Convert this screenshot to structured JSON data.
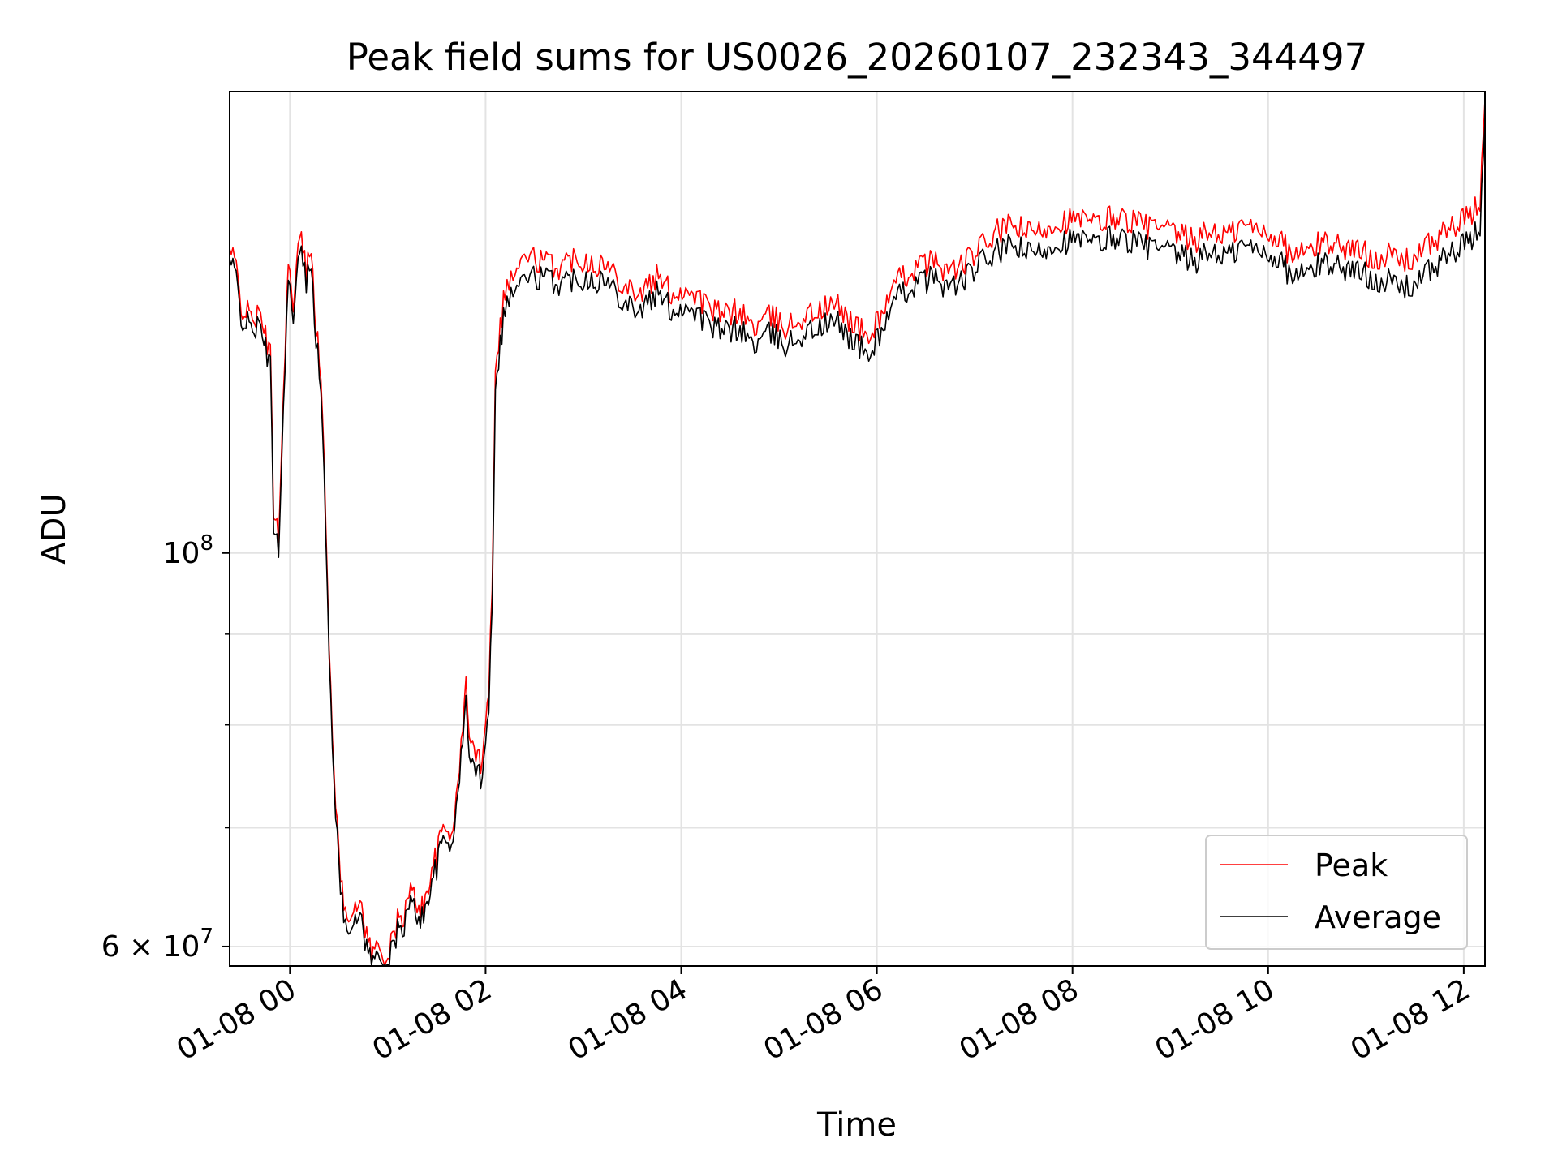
{
  "chart_data": {
    "type": "line",
    "title": "Peak field sums for US0026_20260107_232343_344497",
    "xlabel": "Time",
    "ylabel": "ADU",
    "y_scale": "log",
    "grid": true,
    "legend_position": "lower-right",
    "x_tick_labels": [
      "01-08 00",
      "01-08 02",
      "01-08 04",
      "01-08 06",
      "01-08 08",
      "01-08 10",
      "01-08 12"
    ],
    "y_tick_labels": [
      {
        "value": 100000000,
        "mantissa": "",
        "base": "10",
        "exp": "8"
      },
      {
        "value": 60000000,
        "mantissa": "6",
        "base": "10",
        "exp": "7"
      }
    ],
    "xlim": [
      "01-07 23:23",
      "01-08 12:13"
    ],
    "ylim": [
      58500000,
      182000000
    ],
    "series": [
      {
        "name": "Peak",
        "color": "#ff0000",
        "points": [
          [
            "01-07 23:23",
            148000000
          ],
          [
            "01-07 23:27",
            145000000
          ],
          [
            "01-07 23:30",
            138000000
          ],
          [
            "01-07 23:35",
            136000000
          ],
          [
            "01-07 23:40",
            136000000
          ],
          [
            "01-07 23:44",
            134000000
          ],
          [
            "01-07 23:48",
            129000000
          ],
          [
            "01-07 23:50",
            106000000
          ],
          [
            "01-07 23:53",
            103000000
          ],
          [
            "01-07 23:56",
            122000000
          ],
          [
            "01-07 23:59",
            148000000
          ],
          [
            "01-08 00:02",
            136000000
          ],
          [
            "01-08 00:06",
            152000000
          ],
          [
            "01-08 00:10",
            144000000
          ],
          [
            "01-08 00:13",
            150000000
          ],
          [
            "01-08 00:16",
            134000000
          ],
          [
            "01-08 00:19",
            126000000
          ],
          [
            "01-08 00:21",
            112000000
          ],
          [
            "01-08 00:24",
            88000000
          ],
          [
            "01-08 00:27",
            76000000
          ],
          [
            "01-08 00:30",
            67000000
          ],
          [
            "01-08 00:33",
            63500000
          ],
          [
            "01-08 00:36",
            63000000
          ],
          [
            "01-08 00:40",
            62500000
          ],
          [
            "01-08 00:43",
            64000000
          ],
          [
            "01-08 00:47",
            61000000
          ],
          [
            "01-08 00:50",
            59500000
          ],
          [
            "01-08 00:54",
            60000000
          ],
          [
            "01-08 00:57",
            59500000
          ],
          [
            "01-08 01:00",
            59000000
          ],
          [
            "01-08 01:03",
            60500000
          ],
          [
            "01-08 01:06",
            62000000
          ],
          [
            "01-08 01:10",
            62500000
          ],
          [
            "01-08 01:14",
            64500000
          ],
          [
            "01-08 01:18",
            63500000
          ],
          [
            "01-08 01:22",
            63000000
          ],
          [
            "01-08 01:26",
            66000000
          ],
          [
            "01-08 01:30",
            67500000
          ],
          [
            "01-08 01:34",
            70000000
          ],
          [
            "01-08 01:38",
            69500000
          ],
          [
            "01-08 01:42",
            72000000
          ],
          [
            "01-08 01:45",
            78000000
          ],
          [
            "01-08 01:48",
            84000000
          ],
          [
            "01-08 01:51",
            78000000
          ],
          [
            "01-08 01:54",
            77000000
          ],
          [
            "01-08 01:57",
            76000000
          ],
          [
            "01-08 02:00",
            81000000
          ],
          [
            "01-08 02:02",
            84000000
          ],
          [
            "01-08 02:04",
            96000000
          ],
          [
            "01-08 02:06",
            128000000
          ],
          [
            "01-08 02:08",
            132000000
          ],
          [
            "01-08 02:12",
            141000000
          ],
          [
            "01-08 02:18",
            144000000
          ],
          [
            "01-08 02:25",
            147000000
          ],
          [
            "01-08 02:35",
            146000000
          ],
          [
            "01-08 02:45",
            145000000
          ],
          [
            "01-08 02:55",
            147000000
          ],
          [
            "01-08 03:05",
            146000000
          ],
          [
            "01-08 03:15",
            145000000
          ],
          [
            "01-08 03:25",
            142000000
          ],
          [
            "01-08 03:35",
            140000000
          ],
          [
            "01-08 03:45",
            143000000
          ],
          [
            "01-08 03:55",
            140000000
          ],
          [
            "01-08 04:05",
            141000000
          ],
          [
            "01-08 04:15",
            138000000
          ],
          [
            "01-08 04:25",
            136000000
          ],
          [
            "01-08 04:35",
            137000000
          ],
          [
            "01-08 04:45",
            134000000
          ],
          [
            "01-08 04:55",
            136000000
          ],
          [
            "01-08 05:05",
            134000000
          ],
          [
            "01-08 05:15",
            136000000
          ],
          [
            "01-08 05:25",
            137000000
          ],
          [
            "01-08 05:35",
            138000000
          ],
          [
            "01-08 05:45",
            135000000
          ],
          [
            "01-08 05:55",
            132000000
          ],
          [
            "01-08 06:05",
            138000000
          ],
          [
            "01-08 06:15",
            143000000
          ],
          [
            "01-08 06:25",
            145000000
          ],
          [
            "01-08 06:35",
            146000000
          ],
          [
            "01-08 06:45",
            144000000
          ],
          [
            "01-08 06:55",
            146000000
          ],
          [
            "01-08 07:05",
            149000000
          ],
          [
            "01-08 07:15",
            152000000
          ],
          [
            "01-08 07:25",
            153000000
          ],
          [
            "01-08 07:35",
            151000000
          ],
          [
            "01-08 07:45",
            153000000
          ],
          [
            "01-08 07:55",
            154000000
          ],
          [
            "01-08 08:05",
            154000000
          ],
          [
            "01-08 08:15",
            153000000
          ],
          [
            "01-08 08:25",
            155000000
          ],
          [
            "01-08 08:35",
            154000000
          ],
          [
            "01-08 08:45",
            153000000
          ],
          [
            "01-08 08:55",
            152000000
          ],
          [
            "01-08 09:05",
            151000000
          ],
          [
            "01-08 09:15",
            150000000
          ],
          [
            "01-08 09:25",
            152000000
          ],
          [
            "01-08 09:35",
            151000000
          ],
          [
            "01-08 09:45",
            153000000
          ],
          [
            "01-08 09:55",
            152000000
          ],
          [
            "01-08 10:05",
            151000000
          ],
          [
            "01-08 10:15",
            147000000
          ],
          [
            "01-08 10:25",
            148000000
          ],
          [
            "01-08 10:35",
            150000000
          ],
          [
            "01-08 10:45",
            149000000
          ],
          [
            "01-08 10:55",
            148000000
          ],
          [
            "01-08 11:05",
            147000000
          ],
          [
            "01-08 11:15",
            147000000
          ],
          [
            "01-08 11:25",
            146000000
          ],
          [
            "01-08 11:35",
            148000000
          ],
          [
            "01-08 11:45",
            151000000
          ],
          [
            "01-08 11:55",
            153000000
          ],
          [
            "01-08 12:05",
            155000000
          ],
          [
            "01-08 12:10",
            158000000
          ],
          [
            "01-08 12:13",
            180000000
          ]
        ]
      },
      {
        "name": "Average",
        "color": "#000000",
        "points": [
          [
            "01-07 23:23",
            146000000
          ],
          [
            "01-07 23:27",
            143000000
          ],
          [
            "01-07 23:30",
            136000000
          ],
          [
            "01-07 23:35",
            134000000
          ],
          [
            "01-07 23:40",
            134000000
          ],
          [
            "01-07 23:44",
            132000000
          ],
          [
            "01-07 23:48",
            127000000
          ],
          [
            "01-07 23:50",
            104000000
          ],
          [
            "01-07 23:53",
            101000000
          ],
          [
            "01-07 23:56",
            120000000
          ],
          [
            "01-07 23:59",
            145000000
          ],
          [
            "01-08 00:02",
            134000000
          ],
          [
            "01-08 00:06",
            149000000
          ],
          [
            "01-08 00:10",
            142000000
          ],
          [
            "01-08 00:13",
            147000000
          ],
          [
            "01-08 00:16",
            132000000
          ],
          [
            "01-08 00:19",
            124000000
          ],
          [
            "01-08 00:21",
            110000000
          ],
          [
            "01-08 00:24",
            87000000
          ],
          [
            "01-08 00:27",
            75000000
          ],
          [
            "01-08 00:30",
            66000000
          ],
          [
            "01-08 00:33",
            62500000
          ],
          [
            "01-08 00:36",
            62000000
          ],
          [
            "01-08 00:40",
            61500000
          ],
          [
            "01-08 00:43",
            63000000
          ],
          [
            "01-08 00:47",
            60000000
          ],
          [
            "01-08 00:50",
            58800000
          ],
          [
            "01-08 00:54",
            59200000
          ],
          [
            "01-08 00:57",
            58800000
          ],
          [
            "01-08 01:00",
            58500000
          ],
          [
            "01-08 01:03",
            59800000
          ],
          [
            "01-08 01:06",
            61200000
          ],
          [
            "01-08 01:10",
            61700000
          ],
          [
            "01-08 01:14",
            63500000
          ],
          [
            "01-08 01:18",
            62600000
          ],
          [
            "01-08 01:22",
            62200000
          ],
          [
            "01-08 01:26",
            65000000
          ],
          [
            "01-08 01:30",
            66500000
          ],
          [
            "01-08 01:34",
            69000000
          ],
          [
            "01-08 01:38",
            68500000
          ],
          [
            "01-08 01:42",
            71000000
          ],
          [
            "01-08 01:45",
            77000000
          ],
          [
            "01-08 01:48",
            82000000
          ],
          [
            "01-08 01:51",
            76000000
          ],
          [
            "01-08 01:54",
            75500000
          ],
          [
            "01-08 01:57",
            74500000
          ],
          [
            "01-08 02:00",
            79000000
          ],
          [
            "01-08 02:02",
            82000000
          ],
          [
            "01-08 02:04",
            94000000
          ],
          [
            "01-08 02:06",
            125000000
          ],
          [
            "01-08 02:08",
            129000000
          ],
          [
            "01-08 02:12",
            138000000
          ],
          [
            "01-08 02:18",
            141000000
          ],
          [
            "01-08 02:25",
            143000000
          ],
          [
            "01-08 02:35",
            143000000
          ],
          [
            "01-08 02:45",
            142000000
          ],
          [
            "01-08 02:55",
            143000000
          ],
          [
            "01-08 03:05",
            143000000
          ],
          [
            "01-08 03:15",
            142000000
          ],
          [
            "01-08 03:25",
            139000000
          ],
          [
            "01-08 03:35",
            137000000
          ],
          [
            "01-08 03:45",
            140000000
          ],
          [
            "01-08 03:55",
            137000000
          ],
          [
            "01-08 04:05",
            138000000
          ],
          [
            "01-08 04:15",
            135000000
          ],
          [
            "01-08 04:25",
            133000000
          ],
          [
            "01-08 04:35",
            134000000
          ],
          [
            "01-08 04:45",
            131000000
          ],
          [
            "01-08 04:55",
            133000000
          ],
          [
            "01-08 05:05",
            131000000
          ],
          [
            "01-08 05:15",
            133000000
          ],
          [
            "01-08 05:25",
            134000000
          ],
          [
            "01-08 05:35",
            135000000
          ],
          [
            "01-08 05:45",
            132000000
          ],
          [
            "01-08 05:55",
            129000000
          ],
          [
            "01-08 06:05",
            135000000
          ],
          [
            "01-08 06:15",
            140000000
          ],
          [
            "01-08 06:25",
            142000000
          ],
          [
            "01-08 06:35",
            143000000
          ],
          [
            "01-08 06:45",
            141000000
          ],
          [
            "01-08 06:55",
            143000000
          ],
          [
            "01-08 07:05",
            146000000
          ],
          [
            "01-08 07:15",
            148000000
          ],
          [
            "01-08 07:25",
            149000000
          ],
          [
            "01-08 07:35",
            147000000
          ],
          [
            "01-08 07:45",
            149000000
          ],
          [
            "01-08 07:55",
            150000000
          ],
          [
            "01-08 08:05",
            150000000
          ],
          [
            "01-08 08:15",
            149000000
          ],
          [
            "01-08 08:25",
            151000000
          ],
          [
            "01-08 08:35",
            150000000
          ],
          [
            "01-08 08:45",
            149000000
          ],
          [
            "01-08 08:55",
            148000000
          ],
          [
            "01-08 09:05",
            147000000
          ],
          [
            "01-08 09:15",
            146000000
          ],
          [
            "01-08 09:25",
            148000000
          ],
          [
            "01-08 09:35",
            147000000
          ],
          [
            "01-08 09:45",
            149000000
          ],
          [
            "01-08 09:55",
            148000000
          ],
          [
            "01-08 10:05",
            147000000
          ],
          [
            "01-08 10:15",
            143000000
          ],
          [
            "01-08 10:25",
            144000000
          ],
          [
            "01-08 10:35",
            146000000
          ],
          [
            "01-08 10:45",
            145000000
          ],
          [
            "01-08 10:55",
            144000000
          ],
          [
            "01-08 11:05",
            143000000
          ],
          [
            "01-08 11:15",
            142000000
          ],
          [
            "01-08 11:25",
            141000000
          ],
          [
            "01-08 11:35",
            143000000
          ],
          [
            "01-08 11:45",
            146000000
          ],
          [
            "01-08 11:55",
            148000000
          ],
          [
            "01-08 12:05",
            150000000
          ],
          [
            "01-08 12:10",
            153000000
          ],
          [
            "01-08 12:13",
            175000000
          ]
        ]
      }
    ]
  }
}
